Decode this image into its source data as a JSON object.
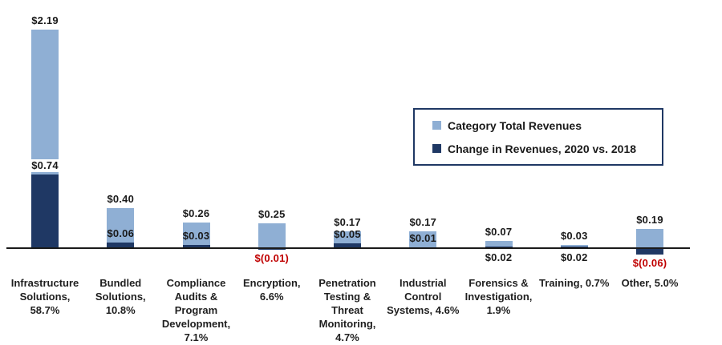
{
  "chart_data": {
    "type": "bar",
    "overlap": "series drawn overlapping at same x positions",
    "categories": [
      "Infrastructure\nSolutions,\n58.7%",
      "Bundled\nSolutions,\n10.8%",
      "Compliance\nAudits &\nProgram\nDevelopment,\n7.1%",
      "Encryption,\n6.6%",
      "Penetration\nTesting &\nThreat\nMonitoring,\n4.7%",
      "Industrial\nControl\nSystems, 4.6%",
      "Forensics &\nInvestigation,\n1.9%",
      "Training, 0.7%",
      "Other, 5.0%"
    ],
    "series": [
      {
        "name": "Category Total Revenues",
        "color": "#8FAFD4",
        "values": [
          2.19,
          0.4,
          0.26,
          0.25,
          0.17,
          0.17,
          0.07,
          0.03,
          0.19
        ],
        "labels": [
          "$2.19",
          "$0.40",
          "$0.26",
          "$0.25",
          "$0.17",
          "$0.17",
          "$0.07",
          "$0.03",
          "$0.19"
        ]
      },
      {
        "name": "Change in Revenues, 2020 vs. 2018",
        "color": "#1F3864",
        "values": [
          0.74,
          0.06,
          0.03,
          -0.01,
          0.05,
          0.01,
          0.02,
          0.02,
          -0.06
        ],
        "labels": [
          "$0.74",
          "$0.06",
          "$0.03",
          "$(0.01)",
          "$0.05",
          "$0.01",
          "$0.02",
          "$0.02",
          "$(0.06)"
        ],
        "label_placement": [
          "above",
          "above",
          "above",
          "below",
          "above",
          "above",
          "below",
          "below",
          "below"
        ],
        "label_fill_white": [
          true,
          false,
          false,
          false,
          false,
          false,
          false,
          false,
          false
        ]
      }
    ],
    "value_label_color": "#1a1a1a",
    "negative_label_color": "#C00000",
    "legend": {
      "position": "center-right",
      "border_color": "#1F3864"
    },
    "axis": {
      "baseline_value": 0,
      "line_color": "#1a1a1a",
      "ylim": [
        -0.1,
        2.3
      ],
      "gridlines": false,
      "y_axis_visible": false
    }
  }
}
